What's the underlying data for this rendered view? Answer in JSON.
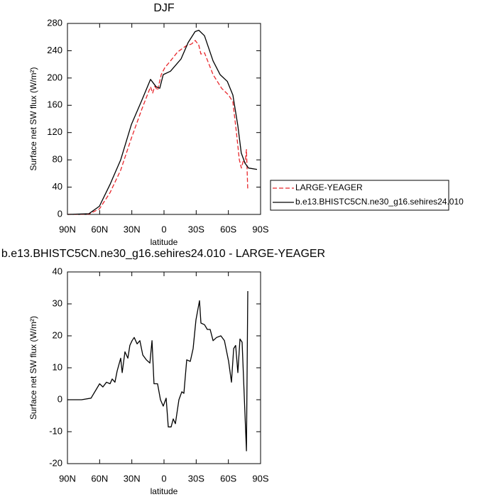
{
  "chart_data": [
    {
      "type": "line",
      "title": "DJF",
      "x_label": "latitude",
      "y_label": "Surface net SW flux (W/m²)",
      "xlim": [
        90,
        -90
      ],
      "xticks": [
        {
          "value": 90,
          "label": "90N"
        },
        {
          "value": 60,
          "label": "60N"
        },
        {
          "value": 30,
          "label": "30N"
        },
        0,
        {
          "value": -30,
          "label": "30S"
        },
        {
          "value": -60,
          "label": "60S"
        },
        {
          "value": -90,
          "label": "90S"
        }
      ],
      "ylim": [
        0,
        280
      ],
      "yticks": [
        0,
        40,
        80,
        120,
        160,
        200,
        240,
        280
      ],
      "legend": "right",
      "series": [
        {
          "name": "LARGE-YEAGER",
          "color": "#e8262b",
          "dashed": true,
          "x": [
            90,
            70,
            60.2,
            50.3,
            40.4,
            30.4,
            20.5,
            12.6,
            10.6,
            8.6,
            6,
            2.6,
            -0.7,
            -6,
            -12.6,
            -20.5,
            -25.8,
            -29.1,
            -32.4,
            -34.4,
            -37.7,
            -45.7,
            -53.7,
            -60.2,
            -64.2,
            -67.5,
            -70.2,
            -72.1,
            -74.1,
            -75.5,
            -76.8,
            -78.1
          ],
          "values": [
            0,
            0.5,
            8,
            32,
            65,
            112,
            155,
            187,
            178,
            188,
            182,
            205,
            215,
            225,
            238,
            247,
            250,
            255,
            248,
            235,
            237,
            205,
            185,
            175,
            165,
            120,
            80,
            68,
            80,
            75,
            95,
            35
          ]
        },
        {
          "name": "b.e13.BHISTC5CN.ne30_g16.sehires24.010",
          "color": "#000000",
          "dashed": false,
          "x": [
            90,
            70,
            60.2,
            50.3,
            40.4,
            30.4,
            20.5,
            12.6,
            7.3,
            4,
            0.7,
            -6,
            -15.9,
            -22.5,
            -29,
            -32.4,
            -37.7,
            -45.7,
            -52.3,
            -59,
            -64.2,
            -68.8,
            -72,
            -75.5,
            -78.8,
            -86.7
          ],
          "values": [
            0,
            1,
            12,
            44,
            80,
            132,
            168,
            198,
            187,
            185,
            205,
            210,
            228,
            252,
            268,
            270,
            262,
            225,
            205,
            195,
            175,
            130,
            90,
            75,
            68,
            66
          ]
        }
      ]
    },
    {
      "type": "line",
      "title": "b.e13.BHISTC5CN.ne30_g16.sehires24.010 - LARGE-YEAGER",
      "x_label": "latitude",
      "y_label": "Surface net SW flux (W/m²)",
      "xlim": [
        90,
        -90
      ],
      "xticks": [
        {
          "value": 90,
          "label": "90N"
        },
        {
          "value": 60,
          "label": "60N"
        },
        {
          "value": 30,
          "label": "30N"
        },
        0,
        {
          "value": -30,
          "label": "30S"
        },
        {
          "value": -60,
          "label": "60S"
        },
        {
          "value": -90,
          "label": "90S"
        }
      ],
      "ylim": [
        -20,
        40
      ],
      "yticks": [
        -20,
        -10,
        0,
        10,
        20,
        30,
        40
      ],
      "series": [
        {
          "color": "#000000",
          "dashed": false,
          "x": [
            90,
            76.8,
            68,
            60,
            57,
            53.6,
            50.3,
            48.3,
            45.7,
            43.7,
            40.4,
            39,
            36.4,
            33.7,
            31.8,
            29.8,
            27.8,
            25.1,
            22.5,
            19.8,
            16.5,
            13.2,
            11.2,
            9.3,
            6,
            3.3,
            0.7,
            -2,
            -4,
            -6.6,
            -8.6,
            -10.6,
            -13.9,
            -16.6,
            -18.5,
            -21.2,
            -24.5,
            -27.1,
            -29.8,
            -33.1,
            -34.4,
            -37.7,
            -40.4,
            -43,
            -45.7,
            -49,
            -53,
            -56.3,
            -60.2,
            -62.9,
            -64.9,
            -66.8,
            -68.8,
            -70.8,
            -72.8,
            -76.8,
            -78.1
          ],
          "values": [
            0,
            0,
            0.5,
            5,
            4,
            5.5,
            5,
            6.5,
            5.5,
            9,
            13,
            8.5,
            15,
            13,
            17,
            18.5,
            19.5,
            17.5,
            18.5,
            14,
            12.5,
            11.5,
            18.5,
            5,
            5,
            0,
            -2,
            0.5,
            -8.5,
            -8.5,
            -6,
            -7.5,
            0,
            2.5,
            2,
            12.5,
            12,
            16,
            25,
            31,
            24,
            23.5,
            22,
            22,
            18.5,
            19.5,
            20,
            18.5,
            12,
            5.5,
            16,
            17,
            8.5,
            19,
            18,
            -16,
            34
          ]
        }
      ]
    }
  ]
}
